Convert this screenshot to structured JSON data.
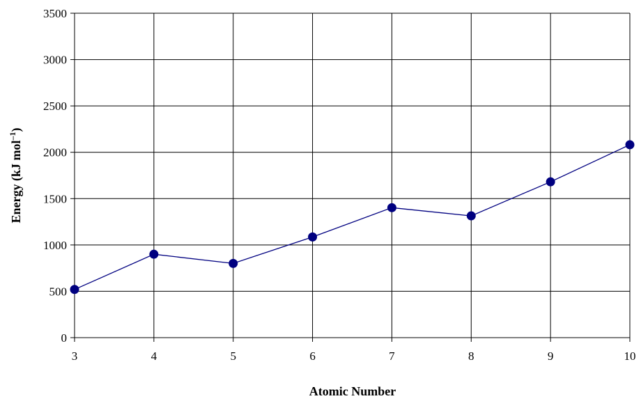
{
  "chart_data": {
    "type": "line",
    "title": "",
    "xlabel": "Atomic Number",
    "ylabel": {
      "main": "Energy  (kJ mol",
      "sup": "–1",
      "close": ")"
    },
    "xlim": [
      3,
      10
    ],
    "ylim": [
      0,
      3500
    ],
    "x_ticks": [
      "3",
      "4",
      "5",
      "6",
      "7",
      "8",
      "9",
      "10"
    ],
    "y_ticks": [
      "0",
      "500",
      "1000",
      "1500",
      "2000",
      "2500",
      "3000",
      "3500"
    ],
    "grid": true,
    "legend": "none",
    "series": [
      {
        "color": "#000080",
        "x": [
          3,
          4,
          5,
          6,
          7,
          8,
          9,
          10
        ],
        "values": [
          520,
          900,
          801,
          1086,
          1402,
          1314,
          1681,
          2081
        ]
      }
    ]
  }
}
